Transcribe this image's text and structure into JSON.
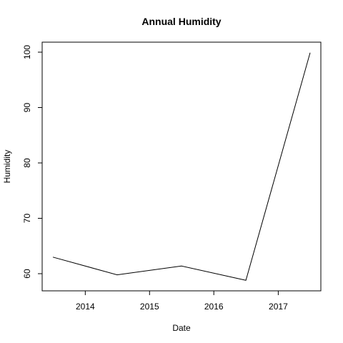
{
  "chart_data": {
    "type": "line",
    "title": "Annual Humidity",
    "xlabel": "Date",
    "ylabel": "Humidity",
    "x_ticks": [
      "2014",
      "2015",
      "2016",
      "2017"
    ],
    "y_ticks": [
      "60",
      "70",
      "80",
      "90",
      "100"
    ],
    "xlim": [
      "2013-07-01",
      "2017-07-01"
    ],
    "ylim": [
      58.8,
      99.9
    ],
    "grid": false,
    "series": [
      {
        "x": [
          "2013-07-01",
          "2014-07-01",
          "2015-07-01",
          "2016-07-01",
          "2017-07-01"
        ],
        "values": [
          63.0,
          59.8,
          61.4,
          58.8,
          99.9
        ],
        "color": "#000000"
      }
    ]
  }
}
